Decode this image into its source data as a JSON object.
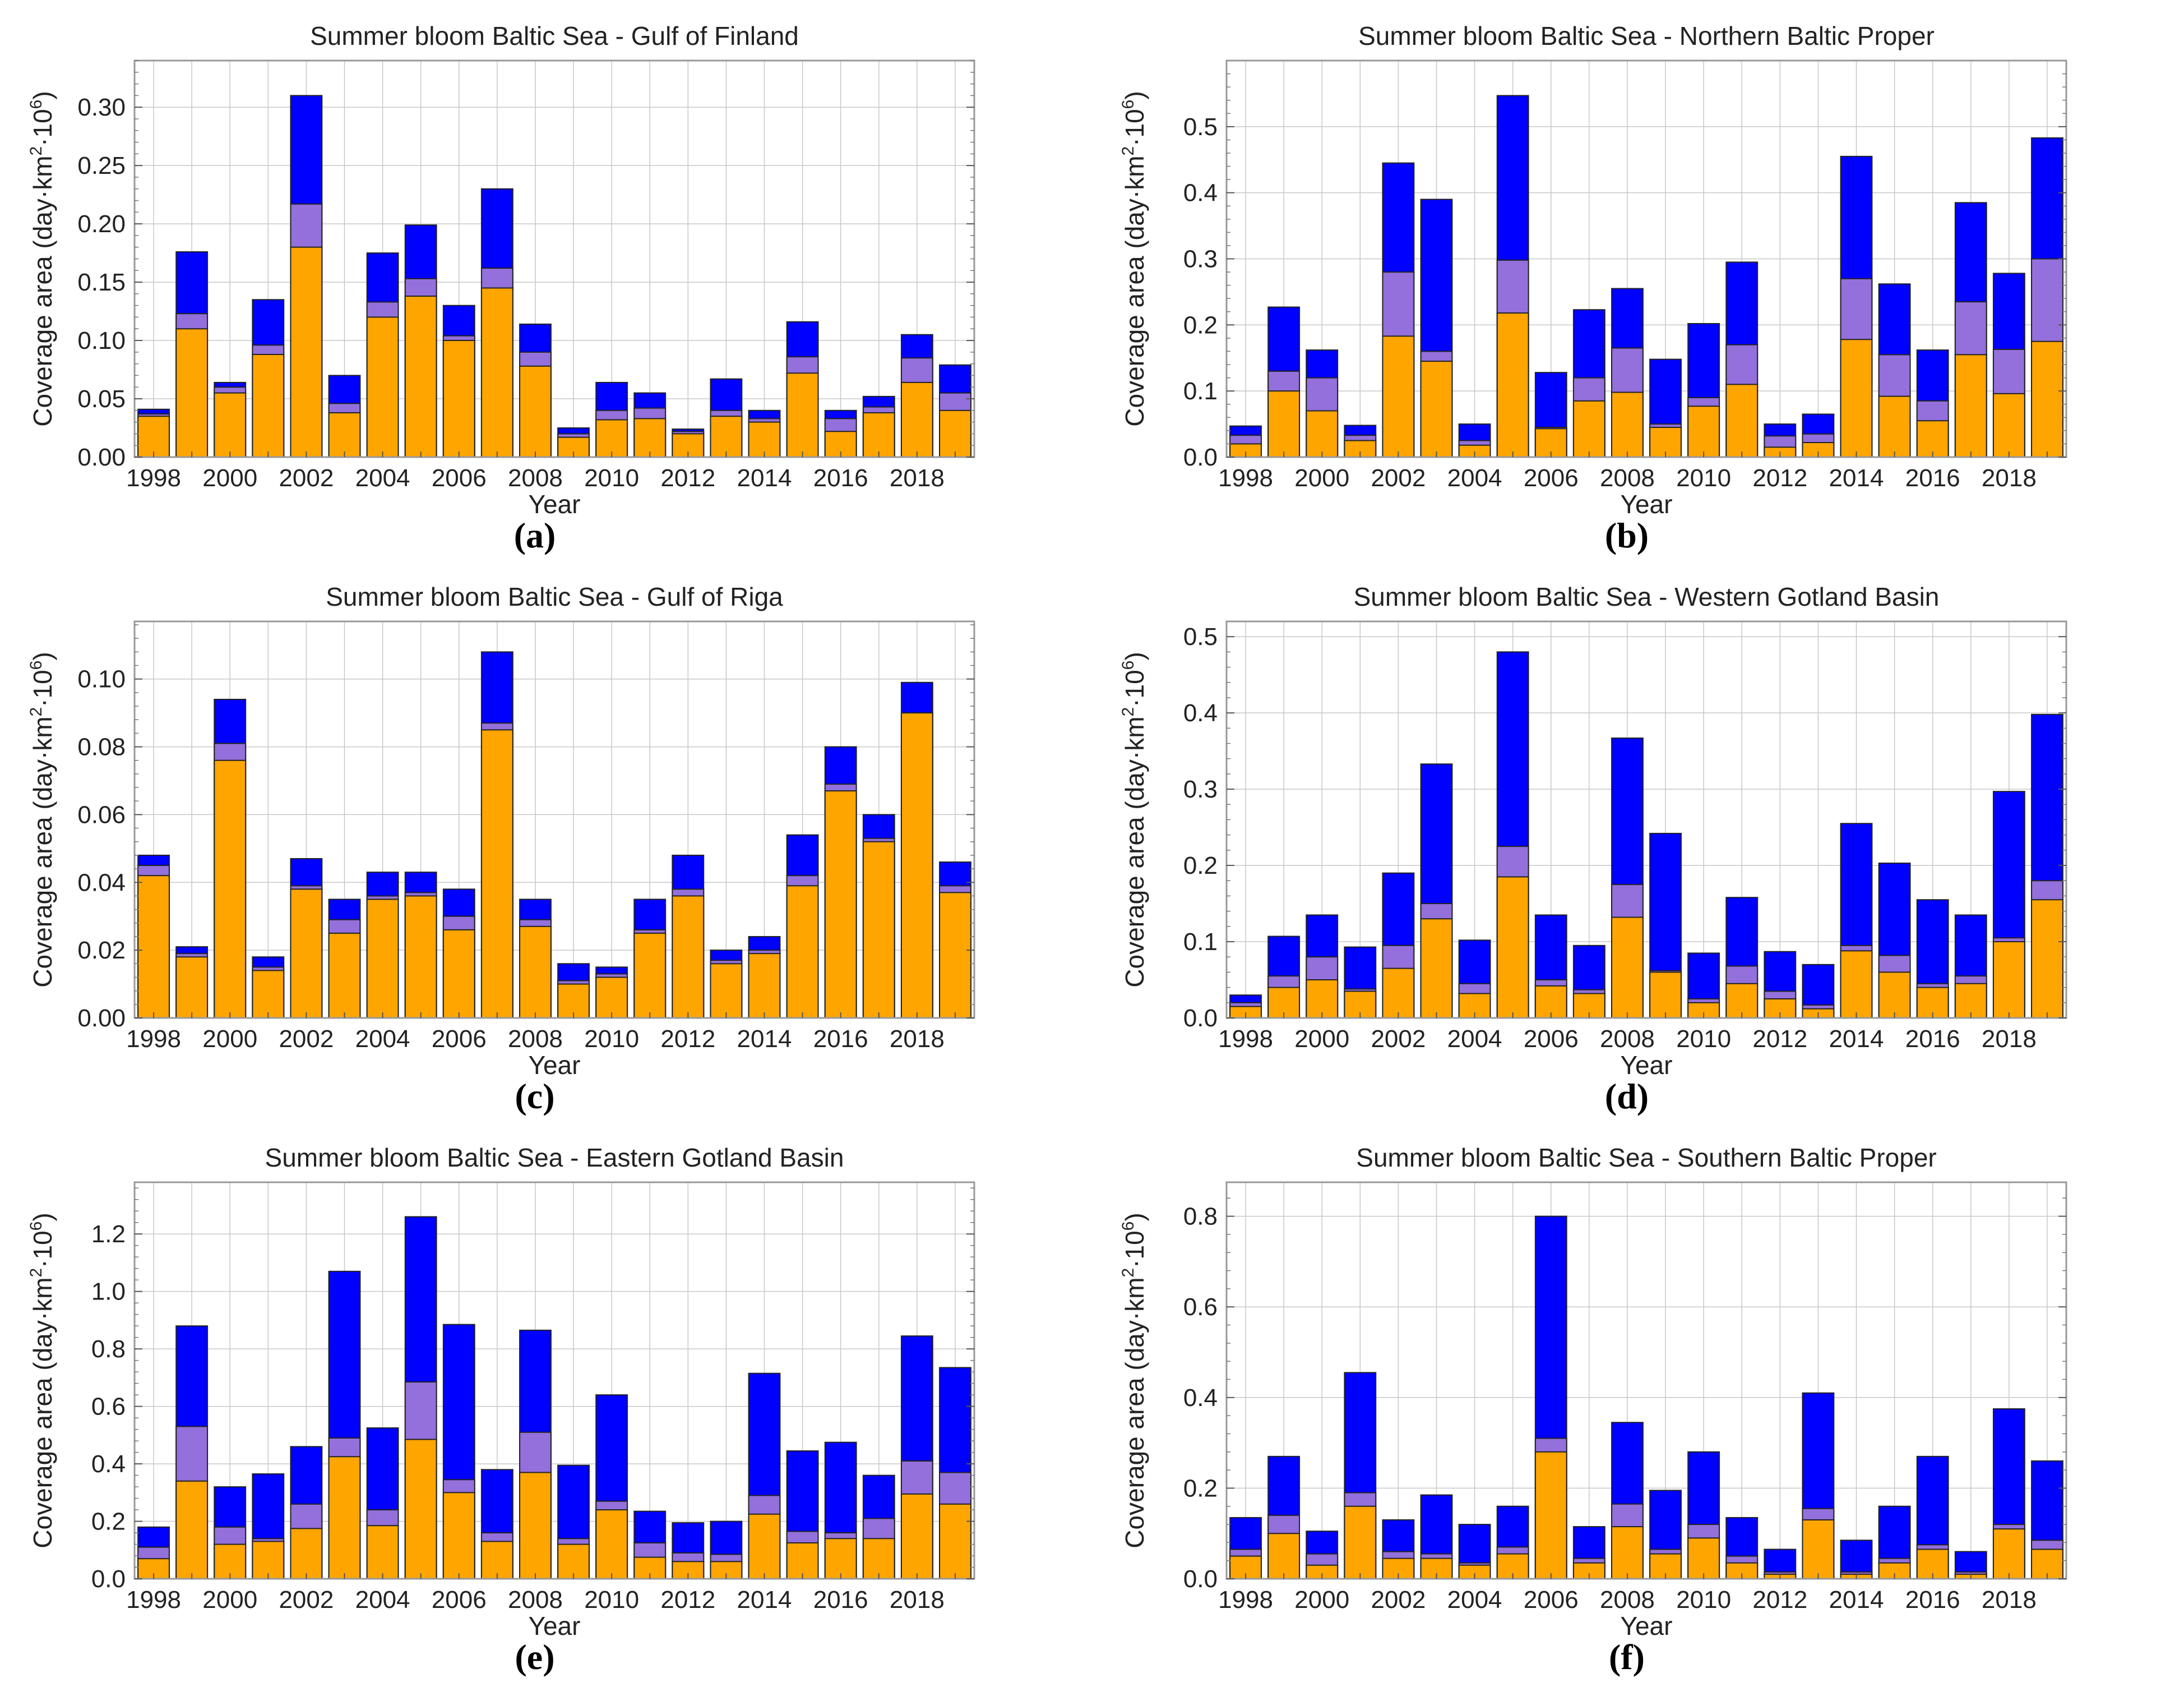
{
  "colors": {
    "orange": "#ffa500",
    "purple": "#9370db",
    "blue": "#0000ff",
    "frame": "#999999",
    "grid": "#c8c8c8"
  },
  "chart_data": [
    {
      "type": "bar",
      "stacked": true,
      "letter": "(a)",
      "title": "Summer bloom Baltic Sea - Gulf of Finland",
      "xlabel": "Year",
      "ylabel": "Coverage area (day·km²·10⁶)",
      "ylabel_parts": {
        "main": "Coverage area (day·km",
        "sup1": "2",
        "mid": "·10",
        "sup2": "6",
        "end": ")"
      },
      "years": [
        1998,
        1999,
        2000,
        2001,
        2002,
        2003,
        2004,
        2005,
        2006,
        2007,
        2008,
        2009,
        2010,
        2011,
        2012,
        2013,
        2014,
        2015,
        2016,
        2017,
        2018,
        2019
      ],
      "xtick_labels": [
        "1998",
        "2000",
        "2002",
        "2004",
        "2006",
        "2008",
        "2010",
        "2012",
        "2014",
        "2016",
        "2018"
      ],
      "ylim": [
        0,
        0.34
      ],
      "yticks": [
        0.0,
        0.05,
        0.1,
        0.15,
        0.2,
        0.25,
        0.3
      ],
      "ytick_labels": [
        "0.00",
        "0.05",
        "0.10",
        "0.15",
        "0.20",
        "0.25",
        "0.30"
      ],
      "series": [
        {
          "name": "orange",
          "cumulative": [
            0.035,
            0.11,
            0.055,
            0.088,
            0.18,
            0.038,
            0.12,
            0.138,
            0.1,
            0.145,
            0.078,
            0.017,
            0.032,
            0.033,
            0.02,
            0.035,
            0.03,
            0.072,
            0.022,
            0.038,
            0.064,
            0.04
          ]
        },
        {
          "name": "purple",
          "cumulative": [
            0.037,
            0.123,
            0.06,
            0.096,
            0.217,
            0.046,
            0.133,
            0.153,
            0.104,
            0.162,
            0.09,
            0.02,
            0.04,
            0.042,
            0.022,
            0.04,
            0.033,
            0.086,
            0.033,
            0.043,
            0.085,
            0.055
          ]
        },
        {
          "name": "blue",
          "cumulative": [
            0.041,
            0.176,
            0.064,
            0.135,
            0.31,
            0.07,
            0.175,
            0.199,
            0.13,
            0.23,
            0.114,
            0.025,
            0.064,
            0.055,
            0.024,
            0.067,
            0.04,
            0.116,
            0.04,
            0.052,
            0.105,
            0.079
          ]
        }
      ]
    },
    {
      "type": "bar",
      "stacked": true,
      "letter": "(b)",
      "title": "Summer bloom Baltic Sea - Northern Baltic Proper",
      "xlabel": "Year",
      "ylabel": "Coverage area (day·km²·10⁶)",
      "ylabel_parts": {
        "main": "Coverage area (day·km",
        "sup1": "2",
        "mid": "·10",
        "sup2": "6",
        "end": ")"
      },
      "years": [
        1998,
        1999,
        2000,
        2001,
        2002,
        2003,
        2004,
        2005,
        2006,
        2007,
        2008,
        2009,
        2010,
        2011,
        2012,
        2013,
        2014,
        2015,
        2016,
        2017,
        2018,
        2019
      ],
      "xtick_labels": [
        "1998",
        "2000",
        "2002",
        "2004",
        "2006",
        "2008",
        "2010",
        "2012",
        "2014",
        "2016",
        "2018"
      ],
      "ylim": [
        0,
        0.6
      ],
      "yticks": [
        0.0,
        0.1,
        0.2,
        0.3,
        0.4,
        0.5
      ],
      "ytick_labels": [
        "0.0",
        "0.1",
        "0.2",
        "0.3",
        "0.4",
        "0.5"
      ],
      "series": [
        {
          "name": "orange",
          "cumulative": [
            0.02,
            0.1,
            0.07,
            0.025,
            0.183,
            0.145,
            0.018,
            0.218,
            0.043,
            0.085,
            0.098,
            0.045,
            0.077,
            0.11,
            0.015,
            0.022,
            0.178,
            0.092,
            0.055,
            0.155,
            0.096,
            0.175
          ]
        },
        {
          "name": "purple",
          "cumulative": [
            0.033,
            0.13,
            0.12,
            0.033,
            0.28,
            0.16,
            0.025,
            0.298,
            0.045,
            0.12,
            0.165,
            0.05,
            0.09,
            0.17,
            0.032,
            0.035,
            0.27,
            0.155,
            0.085,
            0.235,
            0.163,
            0.3
          ]
        },
        {
          "name": "blue",
          "cumulative": [
            0.047,
            0.227,
            0.162,
            0.048,
            0.445,
            0.39,
            0.05,
            0.547,
            0.128,
            0.223,
            0.255,
            0.148,
            0.202,
            0.295,
            0.05,
            0.065,
            0.455,
            0.262,
            0.162,
            0.385,
            0.278,
            0.483
          ]
        }
      ]
    },
    {
      "type": "bar",
      "stacked": true,
      "letter": "(c)",
      "title": "Summer bloom Baltic Sea - Gulf of Riga",
      "xlabel": "Year",
      "ylabel": "Coverage area (day·km²·10⁶)",
      "ylabel_parts": {
        "main": "Coverage area (day·km",
        "sup1": "2",
        "mid": "·10",
        "sup2": "6",
        "end": ")"
      },
      "years": [
        1998,
        1999,
        2000,
        2001,
        2002,
        2003,
        2004,
        2005,
        2006,
        2007,
        2008,
        2009,
        2010,
        2011,
        2012,
        2013,
        2014,
        2015,
        2016,
        2017,
        2018,
        2019
      ],
      "xtick_labels": [
        "1998",
        "2000",
        "2002",
        "2004",
        "2006",
        "2008",
        "2010",
        "2012",
        "2014",
        "2016",
        "2018"
      ],
      "ylim": [
        0,
        0.117
      ],
      "yticks": [
        0.0,
        0.02,
        0.04,
        0.06,
        0.08,
        0.1
      ],
      "ytick_labels": [
        "0.00",
        "0.02",
        "0.04",
        "0.06",
        "0.08",
        "0.10"
      ],
      "series": [
        {
          "name": "orange",
          "cumulative": [
            0.042,
            0.018,
            0.076,
            0.014,
            0.038,
            0.025,
            0.035,
            0.036,
            0.026,
            0.085,
            0.027,
            0.01,
            0.012,
            0.025,
            0.036,
            0.016,
            0.019,
            0.039,
            0.067,
            0.052,
            0.09,
            0.037
          ]
        },
        {
          "name": "purple",
          "cumulative": [
            0.045,
            0.019,
            0.081,
            0.015,
            0.039,
            0.029,
            0.036,
            0.037,
            0.03,
            0.087,
            0.029,
            0.011,
            0.013,
            0.026,
            0.038,
            0.017,
            0.02,
            0.042,
            0.069,
            0.053,
            0.09,
            0.039
          ]
        },
        {
          "name": "blue",
          "cumulative": [
            0.048,
            0.021,
            0.094,
            0.018,
            0.047,
            0.035,
            0.043,
            0.043,
            0.038,
            0.108,
            0.035,
            0.016,
            0.015,
            0.035,
            0.048,
            0.02,
            0.024,
            0.054,
            0.08,
            0.06,
            0.099,
            0.046
          ]
        }
      ]
    },
    {
      "type": "bar",
      "stacked": true,
      "letter": "(d)",
      "title": "Summer bloom Baltic Sea - Western Gotland Basin",
      "xlabel": "Year",
      "ylabel": "Coverage area (day·km²·10⁶)",
      "ylabel_parts": {
        "main": "Coverage area (day·km",
        "sup1": "2",
        "mid": "·10",
        "sup2": "6",
        "end": ")"
      },
      "years": [
        1998,
        1999,
        2000,
        2001,
        2002,
        2003,
        2004,
        2005,
        2006,
        2007,
        2008,
        2009,
        2010,
        2011,
        2012,
        2013,
        2014,
        2015,
        2016,
        2017,
        2018,
        2019
      ],
      "xtick_labels": [
        "1998",
        "2000",
        "2002",
        "2004",
        "2006",
        "2008",
        "2010",
        "2012",
        "2014",
        "2016",
        "2018"
      ],
      "ylim": [
        0,
        0.52
      ],
      "yticks": [
        0.0,
        0.1,
        0.2,
        0.3,
        0.4,
        0.5
      ],
      "ytick_labels": [
        "0.0",
        "0.1",
        "0.2",
        "0.3",
        "0.4",
        "0.5"
      ],
      "series": [
        {
          "name": "orange",
          "cumulative": [
            0.015,
            0.04,
            0.05,
            0.035,
            0.065,
            0.13,
            0.032,
            0.185,
            0.042,
            0.032,
            0.132,
            0.06,
            0.02,
            0.045,
            0.025,
            0.012,
            0.088,
            0.06,
            0.04,
            0.045,
            0.1,
            0.155
          ]
        },
        {
          "name": "purple",
          "cumulative": [
            0.02,
            0.055,
            0.08,
            0.038,
            0.095,
            0.15,
            0.045,
            0.225,
            0.05,
            0.037,
            0.175,
            0.062,
            0.025,
            0.068,
            0.035,
            0.017,
            0.095,
            0.082,
            0.045,
            0.055,
            0.105,
            0.18
          ]
        },
        {
          "name": "blue",
          "cumulative": [
            0.03,
            0.107,
            0.135,
            0.093,
            0.19,
            0.333,
            0.102,
            0.48,
            0.135,
            0.095,
            0.367,
            0.242,
            0.085,
            0.158,
            0.087,
            0.07,
            0.255,
            0.203,
            0.155,
            0.135,
            0.297,
            0.398
          ]
        }
      ]
    },
    {
      "type": "bar",
      "stacked": true,
      "letter": "(e)",
      "title": "Summer bloom Baltic Sea - Eastern Gotland Basin",
      "xlabel": "Year",
      "ylabel": "Coverage area (day·km²·10⁶)",
      "ylabel_parts": {
        "main": "Coverage area (day·km",
        "sup1": "2",
        "mid": "·10",
        "sup2": "6",
        "end": ")"
      },
      "years": [
        1998,
        1999,
        2000,
        2001,
        2002,
        2003,
        2004,
        2005,
        2006,
        2007,
        2008,
        2009,
        2010,
        2011,
        2012,
        2013,
        2014,
        2015,
        2016,
        2017,
        2018,
        2019
      ],
      "xtick_labels": [
        "1998",
        "2000",
        "2002",
        "2004",
        "2006",
        "2008",
        "2010",
        "2012",
        "2014",
        "2016",
        "2018"
      ],
      "ylim": [
        0,
        1.38
      ],
      "yticks": [
        0.0,
        0.2,
        0.4,
        0.6,
        0.8,
        1.0,
        1.2
      ],
      "ytick_labels": [
        "0.0",
        "0.2",
        "0.4",
        "0.6",
        "0.8",
        "1.0",
        "1.2"
      ],
      "series": [
        {
          "name": "orange",
          "cumulative": [
            0.07,
            0.34,
            0.12,
            0.13,
            0.175,
            0.425,
            0.185,
            0.485,
            0.3,
            0.13,
            0.37,
            0.12,
            0.24,
            0.075,
            0.06,
            0.06,
            0.225,
            0.125,
            0.14,
            0.14,
            0.295,
            0.26
          ]
        },
        {
          "name": "purple",
          "cumulative": [
            0.11,
            0.53,
            0.18,
            0.14,
            0.26,
            0.49,
            0.24,
            0.685,
            0.345,
            0.16,
            0.51,
            0.14,
            0.27,
            0.125,
            0.09,
            0.085,
            0.29,
            0.165,
            0.16,
            0.21,
            0.41,
            0.37
          ]
        },
        {
          "name": "blue",
          "cumulative": [
            0.18,
            0.88,
            0.32,
            0.365,
            0.46,
            1.07,
            0.525,
            1.26,
            0.885,
            0.38,
            0.865,
            0.395,
            0.64,
            0.235,
            0.195,
            0.2,
            0.715,
            0.445,
            0.475,
            0.36,
            0.845,
            0.735
          ]
        }
      ]
    },
    {
      "type": "bar",
      "stacked": true,
      "letter": "(f)",
      "title": "Summer bloom Baltic Sea - Southern Baltic Proper",
      "xlabel": "Year",
      "ylabel": "Coverage area (day·km²·10⁶)",
      "ylabel_parts": {
        "main": "Coverage area (day·km",
        "sup1": "2",
        "mid": "·10",
        "sup2": "6",
        "end": ")"
      },
      "years": [
        1998,
        1999,
        2000,
        2001,
        2002,
        2003,
        2004,
        2005,
        2006,
        2007,
        2008,
        2009,
        2010,
        2011,
        2012,
        2013,
        2014,
        2015,
        2016,
        2017,
        2018,
        2019
      ],
      "xtick_labels": [
        "1998",
        "2000",
        "2002",
        "2004",
        "2006",
        "2008",
        "2010",
        "2012",
        "2014",
        "2016",
        "2018"
      ],
      "ylim": [
        0,
        0.875
      ],
      "yticks": [
        0.0,
        0.2,
        0.4,
        0.6,
        0.8
      ],
      "ytick_labels": [
        "0.0",
        "0.2",
        "0.4",
        "0.6",
        "0.8"
      ],
      "series": [
        {
          "name": "orange",
          "cumulative": [
            0.05,
            0.1,
            0.03,
            0.16,
            0.045,
            0.045,
            0.03,
            0.055,
            0.28,
            0.035,
            0.115,
            0.055,
            0.09,
            0.035,
            0.01,
            0.13,
            0.01,
            0.035,
            0.065,
            0.01,
            0.11,
            0.065
          ]
        },
        {
          "name": "purple",
          "cumulative": [
            0.065,
            0.14,
            0.055,
            0.19,
            0.06,
            0.055,
            0.035,
            0.07,
            0.31,
            0.045,
            0.165,
            0.065,
            0.12,
            0.05,
            0.015,
            0.155,
            0.015,
            0.045,
            0.075,
            0.015,
            0.12,
            0.085
          ]
        },
        {
          "name": "blue",
          "cumulative": [
            0.135,
            0.27,
            0.105,
            0.455,
            0.13,
            0.185,
            0.12,
            0.16,
            0.8,
            0.115,
            0.345,
            0.195,
            0.28,
            0.135,
            0.065,
            0.41,
            0.085,
            0.16,
            0.27,
            0.06,
            0.375,
            0.26
          ]
        }
      ]
    }
  ]
}
